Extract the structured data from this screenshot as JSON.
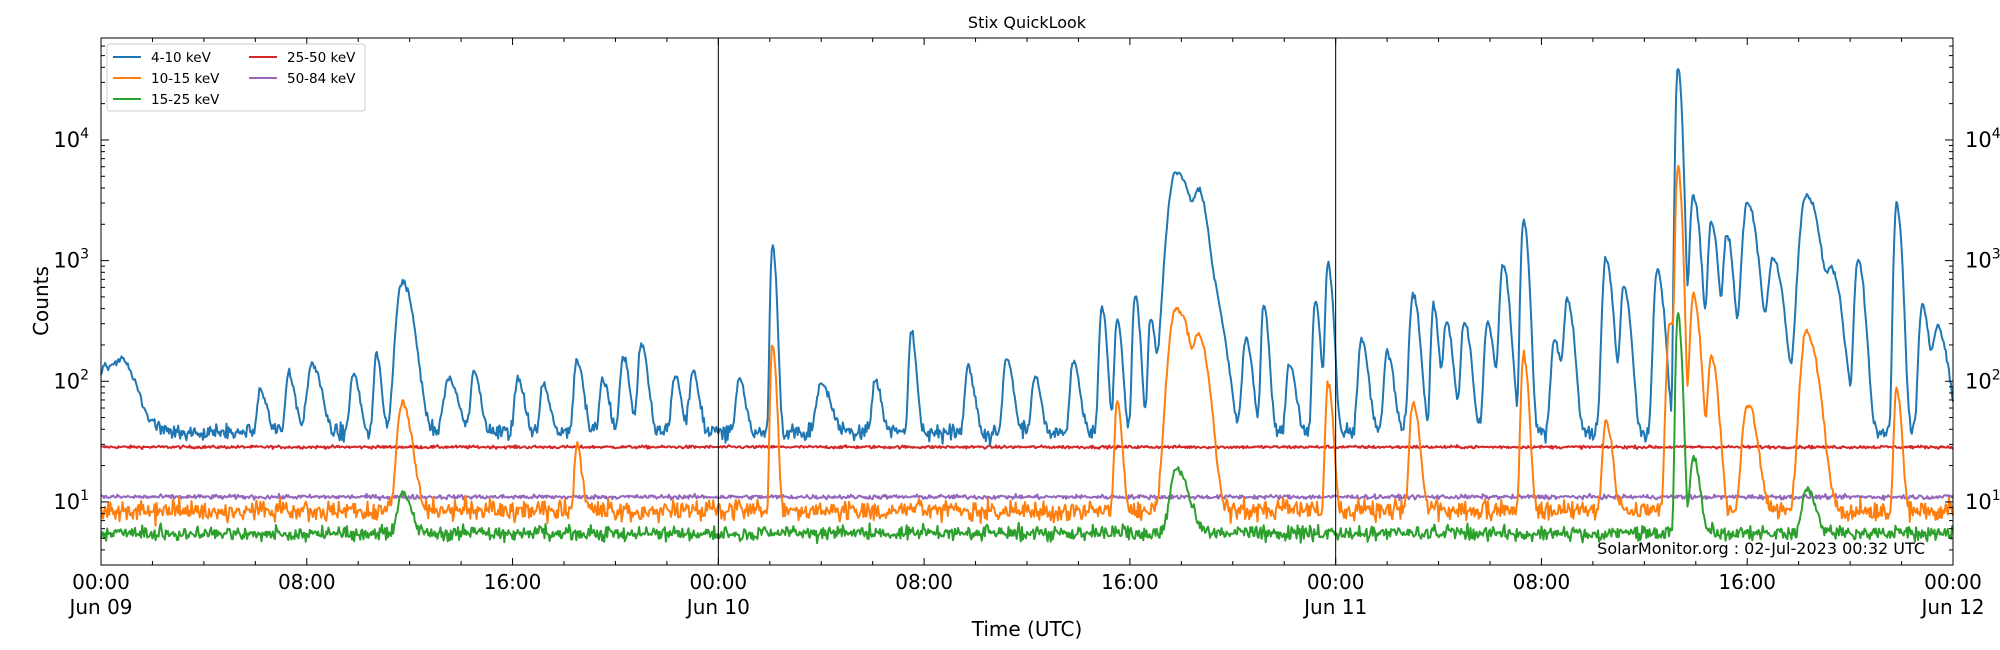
{
  "chart_data": {
    "type": "line",
    "title": "Stix QuickLook",
    "xlabel": "Time (UTC)",
    "ylabel": "Counts",
    "yscale": "log",
    "ylim": [
      3,
      70000
    ],
    "xlim_hours": [
      0,
      72
    ],
    "xtick_hours": [
      0,
      8,
      16,
      24,
      32,
      40,
      48,
      56,
      64,
      72
    ],
    "xtick_labels": [
      [
        "00:00",
        "Jun 09"
      ],
      [
        "08:00",
        ""
      ],
      [
        "16:00",
        ""
      ],
      [
        "00:00",
        "Jun 10"
      ],
      [
        "08:00",
        ""
      ],
      [
        "16:00",
        ""
      ],
      [
        "00:00",
        "Jun 11"
      ],
      [
        "08:00",
        ""
      ],
      [
        "16:00",
        ""
      ],
      [
        "00:00",
        "Jun 12"
      ]
    ],
    "ytick_values": [
      10,
      100,
      1000,
      10000
    ],
    "ytick_labels": [
      "10^1",
      "10^2",
      "10^3",
      "10^4"
    ],
    "day_separators_hours": [
      24,
      48
    ],
    "legend_position": "top-left",
    "annotation": "SolarMonitor.org : 02-Jul-2023 00:32 UTC",
    "series": [
      {
        "name": "4-10 keV",
        "color": "#1f77b4",
        "baseline": 38,
        "noise": 0.12,
        "peaks": [
          [
            0.2,
            105,
            0.6
          ],
          [
            0.9,
            75,
            0.5
          ],
          [
            6.2,
            60,
            0.2
          ],
          [
            7.3,
            90,
            0.2
          ],
          [
            8.2,
            115,
            0.3
          ],
          [
            9.8,
            90,
            0.2
          ],
          [
            10.7,
            145,
            0.15
          ],
          [
            11.7,
            650,
            0.35
          ],
          [
            13.5,
            80,
            0.3
          ],
          [
            14.5,
            95,
            0.2
          ],
          [
            16.2,
            80,
            0.2
          ],
          [
            17.2,
            70,
            0.2
          ],
          [
            18.5,
            120,
            0.2
          ],
          [
            19.5,
            75,
            0.2
          ],
          [
            20.3,
            130,
            0.2
          ],
          [
            21.0,
            175,
            0.2
          ],
          [
            22.3,
            85,
            0.2
          ],
          [
            23.0,
            95,
            0.2
          ],
          [
            24.8,
            80,
            0.2
          ],
          [
            26.1,
            1300,
            0.12
          ],
          [
            28.0,
            70,
            0.3
          ],
          [
            30.1,
            75,
            0.2
          ],
          [
            31.5,
            230,
            0.15
          ],
          [
            33.7,
            105,
            0.2
          ],
          [
            35.2,
            135,
            0.2
          ],
          [
            36.3,
            85,
            0.2
          ],
          [
            37.8,
            120,
            0.2
          ],
          [
            38.9,
            400,
            0.15
          ],
          [
            39.5,
            300,
            0.15
          ],
          [
            40.2,
            480,
            0.15
          ],
          [
            40.8,
            300,
            0.15
          ],
          [
            41.8,
            5500,
            0.5
          ],
          [
            42.7,
            2800,
            0.3
          ],
          [
            43.4,
            300,
            0.3
          ],
          [
            44.5,
            200,
            0.2
          ],
          [
            45.2,
            400,
            0.15
          ],
          [
            46.2,
            110,
            0.2
          ],
          [
            47.2,
            440,
            0.15
          ],
          [
            47.7,
            900,
            0.15
          ],
          [
            49.0,
            200,
            0.2
          ],
          [
            50.0,
            150,
            0.2
          ],
          [
            51.0,
            500,
            0.2
          ],
          [
            51.8,
            400,
            0.15
          ],
          [
            52.3,
            280,
            0.2
          ],
          [
            53.0,
            290,
            0.2
          ],
          [
            53.9,
            280,
            0.2
          ],
          [
            54.5,
            900,
            0.2
          ],
          [
            55.3,
            2200,
            0.15
          ],
          [
            56.5,
            200,
            0.2
          ],
          [
            57.0,
            450,
            0.2
          ],
          [
            58.5,
            1000,
            0.2
          ],
          [
            59.2,
            600,
            0.2
          ],
          [
            60.5,
            800,
            0.2
          ],
          [
            61.3,
            41000,
            0.12
          ],
          [
            61.9,
            3500,
            0.2
          ],
          [
            62.6,
            2000,
            0.2
          ],
          [
            63.2,
            1600,
            0.2
          ],
          [
            64.0,
            3000,
            0.3
          ],
          [
            65.0,
            1000,
            0.3
          ],
          [
            66.3,
            3500,
            0.4
          ],
          [
            67.3,
            700,
            0.3
          ],
          [
            68.3,
            1000,
            0.2
          ],
          [
            69.8,
            3000,
            0.15
          ],
          [
            70.8,
            400,
            0.2
          ],
          [
            71.4,
            250,
            0.3
          ]
        ]
      },
      {
        "name": "10-15 keV",
        "color": "#ff7f0e",
        "baseline": 8.5,
        "noise": 0.14,
        "peaks": [
          [
            11.7,
            60,
            0.3
          ],
          [
            18.5,
            25,
            0.15
          ],
          [
            26.1,
            200,
            0.12
          ],
          [
            39.5,
            60,
            0.15
          ],
          [
            41.8,
            400,
            0.45
          ],
          [
            42.7,
            190,
            0.3
          ],
          [
            47.7,
            90,
            0.15
          ],
          [
            51.0,
            60,
            0.2
          ],
          [
            55.3,
            160,
            0.15
          ],
          [
            58.5,
            40,
            0.2
          ],
          [
            61.0,
            300,
            0.2
          ],
          [
            61.3,
            6000,
            0.12
          ],
          [
            61.9,
            500,
            0.2
          ],
          [
            62.6,
            160,
            0.2
          ],
          [
            64.0,
            60,
            0.3
          ],
          [
            66.3,
            250,
            0.35
          ],
          [
            69.8,
            80,
            0.15
          ]
        ]
      },
      {
        "name": "15-25 keV",
        "color": "#2ca02c",
        "baseline": 5.5,
        "noise": 0.1,
        "peaks": [
          [
            11.7,
            8,
            0.3
          ],
          [
            41.8,
            15,
            0.4
          ],
          [
            61.3,
            350,
            0.12
          ],
          [
            61.9,
            20,
            0.2
          ],
          [
            66.3,
            9,
            0.3
          ]
        ]
      },
      {
        "name": "25-50 keV",
        "color": "#d62728",
        "baseline": 28.5,
        "noise": 0.02,
        "peaks": []
      },
      {
        "name": "50-84 keV",
        "color": "#9467bd",
        "baseline": 11,
        "noise": 0.03,
        "peaks": []
      }
    ]
  }
}
